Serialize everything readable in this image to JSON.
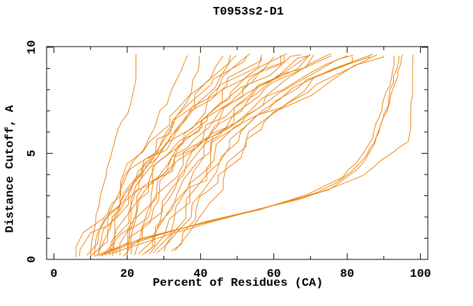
{
  "chart_data": {
    "type": "line",
    "title": "T0953s2-D1",
    "xlabel": "Percent of Residues (CA)",
    "ylabel": "Distance Cutoff, A",
    "xlim": [
      -2,
      102
    ],
    "ylim": [
      0,
      10.03
    ],
    "grid": false,
    "legend": "none",
    "x_major_ticks": [
      0,
      20,
      40,
      60,
      80,
      100
    ],
    "x_minor_ticks": [
      10,
      30,
      50,
      70,
      90
    ],
    "x_tick_labels": [
      "0",
      "20",
      "40",
      "60",
      "80",
      "100"
    ],
    "y_major_ticks": [
      0,
      5,
      10
    ],
    "y_minor_ticks": [
      1,
      2,
      3,
      4,
      6,
      7,
      8,
      9
    ],
    "y_tick_labels": [
      "0",
      "5",
      "10"
    ],
    "line_color": "#ec820d",
    "axis_color": "#000000",
    "series": [
      {
        "j": 0.6,
        "pts": [
          [
            10,
            0.2
          ],
          [
            11,
            1.2
          ],
          [
            12,
            2.2
          ],
          [
            13,
            3.2
          ],
          [
            14.5,
            4.2
          ],
          [
            16,
            5.2
          ],
          [
            18,
            6.2
          ],
          [
            20,
            7.0
          ],
          [
            21.5,
            7.6
          ],
          [
            22,
            8.4
          ],
          [
            22.3,
            9.68
          ]
        ]
      },
      {
        "j": 0.7,
        "pts": [
          [
            11,
            0.2
          ],
          [
            13,
            1.5
          ],
          [
            16,
            2.8
          ],
          [
            20,
            4.0
          ],
          [
            24,
            5.2
          ],
          [
            27.5,
            6.3
          ],
          [
            30,
            7.2
          ],
          [
            32,
            8.0
          ],
          [
            34,
            8.8
          ],
          [
            36,
            9.62
          ]
        ]
      },
      {
        "j": 0.7,
        "pts": [
          [
            12,
            0.25
          ],
          [
            15,
            1.5
          ],
          [
            19,
            2.8
          ],
          [
            24,
            4.2
          ],
          [
            29,
            5.5
          ],
          [
            33,
            6.6
          ],
          [
            36,
            7.5
          ],
          [
            38,
            8.3
          ],
          [
            40,
            9.6
          ]
        ]
      },
      {
        "j": 2.2,
        "pts": [
          [
            6,
            0.1
          ],
          [
            20,
            4.0
          ],
          [
            30,
            6.5
          ],
          [
            47,
            9.6
          ]
        ]
      },
      {
        "j": 2.4,
        "pts": [
          [
            7,
            0.15
          ],
          [
            18,
            3.0
          ],
          [
            32,
            6.5
          ],
          [
            50,
            9.65
          ]
        ]
      },
      {
        "j": 2.2,
        "pts": [
          [
            9,
            0.2
          ],
          [
            22,
            4.2
          ],
          [
            35,
            7.0
          ],
          [
            52,
            9.55
          ]
        ]
      },
      {
        "j": 2.4,
        "pts": [
          [
            10,
            0.15
          ],
          [
            20,
            3.2
          ],
          [
            36,
            6.8
          ],
          [
            54,
            9.7
          ]
        ]
      },
      {
        "j": 2.2,
        "pts": [
          [
            12,
            0.2
          ],
          [
            25,
            4.5
          ],
          [
            40,
            7.2
          ],
          [
            56,
            9.6
          ]
        ]
      },
      {
        "j": 2.4,
        "pts": [
          [
            13,
            0.15
          ],
          [
            24,
            3.8
          ],
          [
            42,
            7.4
          ],
          [
            58,
            9.65
          ]
        ]
      },
      {
        "j": 2.2,
        "pts": [
          [
            15,
            0.2
          ],
          [
            28,
            4.5
          ],
          [
            44,
            7.5
          ],
          [
            60,
            9.55
          ]
        ]
      },
      {
        "j": 2.4,
        "pts": [
          [
            16,
            0.15
          ],
          [
            27,
            3.8
          ],
          [
            45,
            7.2
          ],
          [
            62,
            9.7
          ]
        ]
      },
      {
        "j": 2.2,
        "pts": [
          [
            17,
            0.25
          ],
          [
            30,
            4.6
          ],
          [
            48,
            7.6
          ],
          [
            64,
            9.6
          ]
        ]
      },
      {
        "j": 2.4,
        "pts": [
          [
            18,
            0.2
          ],
          [
            32,
            4.8
          ],
          [
            50,
            7.8
          ],
          [
            66,
            9.65
          ]
        ]
      },
      {
        "j": 2.2,
        "pts": [
          [
            19,
            0.15
          ],
          [
            31,
            4.2
          ],
          [
            52,
            7.8
          ],
          [
            68,
            9.6
          ]
        ]
      },
      {
        "j": 2.4,
        "pts": [
          [
            20,
            0.2
          ],
          [
            34,
            4.8
          ],
          [
            54,
            8.0
          ],
          [
            70,
            9.68
          ]
        ]
      },
      {
        "j": 1.0,
        "pts": [
          [
            20,
            0.2
          ],
          [
            20.5,
            3.0
          ],
          [
            28,
            5.0
          ],
          [
            38,
            7.0
          ],
          [
            50,
            9.6
          ]
        ]
      },
      {
        "j": 2.2,
        "pts": [
          [
            21,
            0.25
          ],
          [
            36,
            5.0
          ],
          [
            56,
            8.0
          ],
          [
            71,
            9.6
          ]
        ]
      },
      {
        "j": 2.4,
        "pts": [
          [
            22,
            0.2
          ],
          [
            38,
            5.2
          ],
          [
            58,
            8.2
          ],
          [
            73,
            9.65
          ]
        ]
      },
      {
        "j": 2.2,
        "pts": [
          [
            23,
            0.25
          ],
          [
            40,
            5.4
          ],
          [
            60,
            8.2
          ],
          [
            75,
            9.6
          ]
        ]
      },
      {
        "j": 2.4,
        "pts": [
          [
            24,
            0.2
          ],
          [
            42,
            5.5
          ],
          [
            62,
            8.3
          ],
          [
            77,
            9.7
          ]
        ]
      },
      {
        "j": 2.2,
        "pts": [
          [
            25,
            0.3
          ],
          [
            44,
            5.6
          ],
          [
            64,
            8.4
          ],
          [
            79,
            9.6
          ]
        ]
      },
      {
        "j": 2.4,
        "pts": [
          [
            26,
            0.25
          ],
          [
            46,
            5.8
          ],
          [
            66,
            8.4
          ],
          [
            81,
            9.62
          ]
        ]
      },
      {
        "j": 2.2,
        "pts": [
          [
            27,
            0.3
          ],
          [
            48,
            6.0
          ],
          [
            68,
            8.5
          ],
          [
            83,
            9.55
          ]
        ]
      },
      {
        "j": 2.4,
        "pts": [
          [
            28,
            0.3
          ],
          [
            50,
            6.0
          ],
          [
            70,
            8.5
          ],
          [
            85,
            9.68
          ]
        ]
      },
      {
        "j": 2.2,
        "pts": [
          [
            30,
            0.35
          ],
          [
            52,
            6.2
          ],
          [
            72,
            8.6
          ],
          [
            87,
            9.6
          ]
        ]
      },
      {
        "j": 2.4,
        "pts": [
          [
            32,
            0.4
          ],
          [
            54,
            6.2
          ],
          [
            75,
            8.6
          ],
          [
            89,
            9.65
          ]
        ]
      },
      {
        "j": 2.2,
        "pts": [
          [
            33,
            0.4
          ],
          [
            56,
            6.4
          ],
          [
            78,
            8.8
          ],
          [
            91,
            9.6
          ]
        ]
      },
      {
        "j": 2.0,
        "pts": [
          [
            14,
            0.2
          ],
          [
            26,
            3.5
          ],
          [
            44,
            6.8
          ],
          [
            63,
            9.62
          ]
        ]
      },
      {
        "m": 1,
        "j": 0.45,
        "pts": [
          [
            12,
            0.15
          ],
          [
            22,
            0.9
          ],
          [
            38,
            1.6
          ],
          [
            55,
            2.3
          ],
          [
            68,
            3.0
          ],
          [
            78,
            3.8
          ],
          [
            83,
            4.6
          ],
          [
            86,
            5.4
          ],
          [
            88,
            6.4
          ],
          [
            90,
            7.5
          ],
          [
            92,
            8.6
          ],
          [
            93,
            9.6
          ]
        ]
      },
      {
        "m": 1,
        "j": 0.45,
        "pts": [
          [
            13,
            0.2
          ],
          [
            26,
            1.0
          ],
          [
            44,
            1.9
          ],
          [
            62,
            2.6
          ],
          [
            75,
            3.3
          ],
          [
            82,
            4.1
          ],
          [
            86,
            5.0
          ],
          [
            89,
            6.0
          ],
          [
            91,
            7.2
          ],
          [
            93,
            8.4
          ],
          [
            95,
            9.65
          ]
        ]
      },
      {
        "m": 1,
        "j": 0.4,
        "pts": [
          [
            15,
            0.25
          ],
          [
            30,
            1.1
          ],
          [
            50,
            2.1
          ],
          [
            68,
            2.9
          ],
          [
            80,
            3.6
          ],
          [
            86,
            4.1
          ],
          [
            89,
            4.6
          ],
          [
            93,
            5.1
          ],
          [
            96.5,
            5.5
          ],
          [
            97.3,
            6.6
          ],
          [
            97.5,
            8.0
          ],
          [
            97.6,
            9.65
          ]
        ]
      },
      {
        "m": 1,
        "j": 0.45,
        "pts": [
          [
            11,
            0.15
          ],
          [
            24,
            0.95
          ],
          [
            41,
            1.75
          ],
          [
            58,
            2.45
          ],
          [
            71,
            3.1
          ],
          [
            80,
            3.9
          ],
          [
            85,
            4.8
          ],
          [
            88,
            5.7
          ],
          [
            90,
            6.8
          ],
          [
            92,
            8.0
          ],
          [
            94,
            9.6
          ]
        ]
      }
    ]
  }
}
